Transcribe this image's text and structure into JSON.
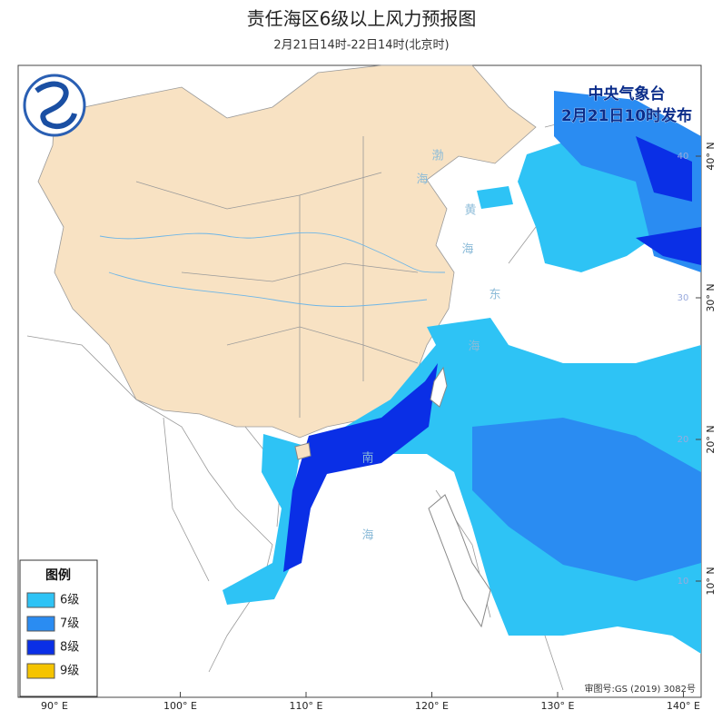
{
  "header": {
    "title": "责任海区6级以上风力预报图",
    "subtitle": "2月21日14时-22日14时(北京时)"
  },
  "stamp": {
    "agency": "中央气象台",
    "issued": "2月21日10时发布"
  },
  "legend": {
    "title": "图例",
    "items": [
      {
        "label": "6级",
        "color": "#2ec3f5"
      },
      {
        "label": "7级",
        "color": "#2a8cf2"
      },
      {
        "label": "8级",
        "color": "#0a2fe6"
      },
      {
        "label": "9级",
        "color": "#f5c400"
      }
    ]
  },
  "axes": {
    "lon_labels": [
      "90° E",
      "100° E",
      "110° E",
      "120° E",
      "130° E",
      "140° E"
    ],
    "lat_labels": [
      "40° N",
      "30° N",
      "20° N",
      "10° N"
    ],
    "lat_inner": [
      "40",
      "30",
      "20",
      "10"
    ]
  },
  "sea_labels": [
    "渤",
    "海",
    "黄",
    "海",
    "东",
    "海",
    "南",
    "海"
  ],
  "footer": {
    "approval": "审图号:GS (2019) 3082号"
  }
}
